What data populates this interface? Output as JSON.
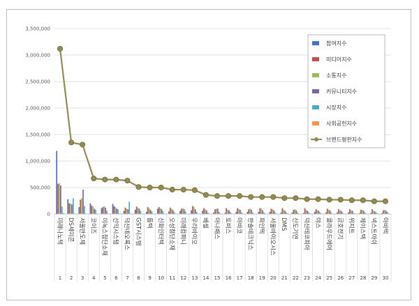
{
  "chart_data": {
    "type": "bar",
    "title": "",
    "xlabel": "",
    "ylabel": "",
    "ylim": [
      0,
      3500000
    ],
    "yticks": [
      "0",
      "500,000",
      "1,000,000",
      "1,500,000",
      "2,000,000",
      "2,500,000",
      "3,000,000",
      "3,500,000"
    ],
    "ytick_values": [
      0,
      500000,
      1000000,
      1500000,
      2000000,
      2500000,
      3000000,
      3500000
    ],
    "grid": true,
    "legend_position": "top-right",
    "ranks": [
      "1",
      "2",
      "3",
      "4",
      "5",
      "6",
      "7",
      "8",
      "9",
      "10",
      "11",
      "12",
      "13",
      "14",
      "15",
      "16",
      "17",
      "18",
      "19",
      "20",
      "21",
      "22",
      "23",
      "24",
      "25",
      "26",
      "27",
      "28",
      "29",
      "30"
    ],
    "categories": [
      "미래나노텍",
      "DS세미콘",
      "서울반도체",
      "코이즈",
      "이녹스첨단소재",
      "선익시스템",
      "덕산네오룩스",
      "GST시스템",
      "톱텍",
      "신화인터텍",
      "오성첨단소재",
      "미래컴퍼니",
      "우리바이오",
      "베셀",
      "아나패스",
      "토비스",
      "아바코",
      "한솔테크닉스",
      "파인텍",
      "서울바이오시스",
      "DMS",
      "신도기연",
      "덕산테코피아",
      "야스",
      "클라우드에어",
      "금호전기",
      "위지트",
      "제이스텍",
      "넥스트아이",
      "아바텍"
    ],
    "series": [
      {
        "name": "참여지수",
        "color": "#4472c4",
        "values": [
          1190000,
          280000,
          130000,
          200000,
          110000,
          190000,
          60000,
          80000,
          40000,
          100000,
          50000,
          60000,
          70000,
          60000,
          30000,
          20000,
          40000,
          40000,
          40000,
          40000,
          30000,
          30000,
          20000,
          40000,
          30000,
          30000,
          30000,
          20000,
          20000,
          20000
        ]
      },
      {
        "name": "미디어지수",
        "color": "#c0504d",
        "values": [
          570000,
          200000,
          270000,
          160000,
          130000,
          150000,
          120000,
          140000,
          130000,
          130000,
          120000,
          100000,
          150000,
          110000,
          90000,
          110000,
          110000,
          90000,
          110000,
          100000,
          110000,
          80000,
          110000,
          90000,
          100000,
          90000,
          90000,
          80000,
          90000,
          70000
        ]
      },
      {
        "name": "소통지수",
        "color": "#9bbb59",
        "values": [
          580000,
          200000,
          300000,
          140000,
          150000,
          130000,
          100000,
          120000,
          110000,
          110000,
          100000,
          110000,
          130000,
          90000,
          100000,
          80000,
          90000,
          100000,
          100000,
          90000,
          80000,
          90000,
          80000,
          70000,
          80000,
          70000,
          70000,
          80000,
          60000,
          80000
        ]
      },
      {
        "name": "커뮤니티지수",
        "color": "#8064a2",
        "values": [
          540000,
          180000,
          460000,
          100000,
          120000,
          100000,
          90000,
          100000,
          80000,
          90000,
          80000,
          90000,
          90000,
          70000,
          100000,
          70000,
          80000,
          80000,
          70000,
          70000,
          60000,
          70000,
          60000,
          60000,
          70000,
          60000,
          60000,
          60000,
          50000,
          60000
        ]
      },
      {
        "name": "시장지수",
        "color": "#4bacc6",
        "values": [
          140000,
          300000,
          150000,
          80000,
          60000,
          90000,
          230000,
          60000,
          50000,
          50000,
          40000,
          50000,
          40000,
          30000,
          40000,
          40000,
          30000,
          30000,
          30000,
          30000,
          30000,
          30000,
          30000,
          30000,
          30000,
          30000,
          20000,
          30000,
          30000,
          40000
        ]
      },
      {
        "name": "사회공헌지수",
        "color": "#f79646",
        "values": [
          20000,
          10000,
          10000,
          10000,
          10000,
          10000,
          10000,
          10000,
          10000,
          10000,
          10000,
          10000,
          10000,
          10000,
          10000,
          10000,
          10000,
          10000,
          10000,
          10000,
          10000,
          10000,
          10000,
          10000,
          10000,
          10000,
          10000,
          10000,
          10000,
          10000
        ]
      }
    ],
    "line": {
      "name": "브랜드평판지수",
      "color": "#948a54",
      "values": [
        3120000,
        1350000,
        1310000,
        670000,
        650000,
        650000,
        630000,
        510000,
        500000,
        500000,
        460000,
        460000,
        450000,
        360000,
        340000,
        340000,
        340000,
        320000,
        320000,
        320000,
        300000,
        300000,
        280000,
        280000,
        270000,
        270000,
        260000,
        260000,
        240000,
        240000
      ]
    }
  }
}
